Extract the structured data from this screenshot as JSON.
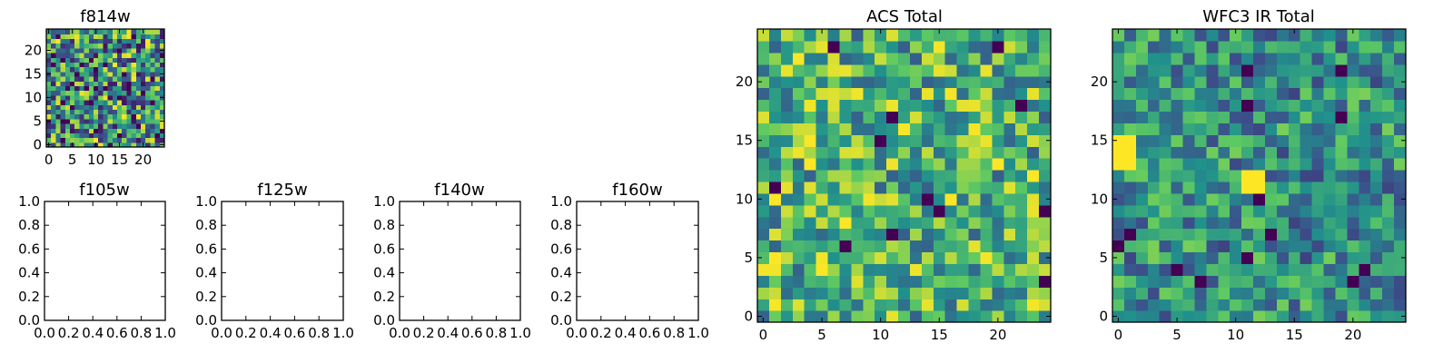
{
  "colormap": [
    "#440154",
    "#3b528b",
    "#21918c",
    "#5ec962",
    "#fde725"
  ],
  "chart_data": [
    {
      "type": "heatmap",
      "id": "f814w",
      "title": "f814w",
      "grid_size": 25,
      "xlim": [
        -0.5,
        24.5
      ],
      "ylim": [
        -0.5,
        24.5
      ],
      "xticks": [
        0,
        5,
        10,
        15,
        20
      ],
      "yticks": [
        0,
        5,
        10,
        15,
        20
      ],
      "seed": 814,
      "value_range": [
        0.05,
        1.0
      ],
      "dark_cell_rate": 0.04,
      "values": "pseudo-random noise field (not individually readable)"
    },
    {
      "type": "empty",
      "id": "f105w",
      "title": "f105w",
      "xlim": [
        0.0,
        1.0
      ],
      "ylim": [
        0.0,
        1.0
      ],
      "xticks": [
        "0.0",
        "0.2",
        "0.4",
        "0.6",
        "0.8",
        "1.0"
      ],
      "yticks": [
        "0.0",
        "0.2",
        "0.4",
        "0.6",
        "0.8",
        "1.0"
      ]
    },
    {
      "type": "empty",
      "id": "f125w",
      "title": "f125w",
      "xlim": [
        0.0,
        1.0
      ],
      "ylim": [
        0.0,
        1.0
      ],
      "xticks": [
        "0.0",
        "0.2",
        "0.4",
        "0.6",
        "0.8",
        "1.0"
      ],
      "yticks": [
        "0.0",
        "0.2",
        "0.4",
        "0.6",
        "0.8",
        "1.0"
      ]
    },
    {
      "type": "empty",
      "id": "f140w",
      "title": "f140w",
      "xlim": [
        0.0,
        1.0
      ],
      "ylim": [
        0.0,
        1.0
      ],
      "xticks": [
        "0.0",
        "0.2",
        "0.4",
        "0.6",
        "0.8",
        "1.0"
      ],
      "yticks": [
        "0.0",
        "0.2",
        "0.4",
        "0.6",
        "0.8",
        "1.0"
      ]
    },
    {
      "type": "empty",
      "id": "f160w",
      "title": "f160w",
      "xlim": [
        0.0,
        1.0
      ],
      "ylim": [
        0.0,
        1.0
      ],
      "xticks": [
        "0.0",
        "0.2",
        "0.4",
        "0.6",
        "0.8",
        "1.0"
      ],
      "yticks": [
        "0.0",
        "0.2",
        "0.4",
        "0.6",
        "0.8",
        "1.0"
      ]
    },
    {
      "type": "heatmap",
      "id": "acs-total",
      "title": "ACS Total",
      "grid_size": 25,
      "xlim": [
        -0.5,
        24.5
      ],
      "ylim": [
        -0.5,
        24.5
      ],
      "xticks": [
        0,
        5,
        10,
        15,
        20
      ],
      "yticks": [
        0,
        5,
        10,
        15,
        20
      ],
      "seed": 2024,
      "value_range": [
        0.3,
        1.0
      ],
      "dark_cell_rate": 0.03,
      "values": "pseudo-random noise field (not individually readable)"
    },
    {
      "type": "heatmap",
      "id": "wfc3-ir-total",
      "title": "WFC3 IR Total",
      "grid_size": 25,
      "xlim": [
        -0.5,
        24.5
      ],
      "ylim": [
        -0.5,
        24.5
      ],
      "xticks": [
        0,
        5,
        10,
        15,
        20
      ],
      "yticks": [
        0,
        5,
        10,
        15,
        20
      ],
      "seed": 3160,
      "value_range": [
        0.2,
        0.8
      ],
      "dark_cell_rate": 0.03,
      "bright_blocks": [
        {
          "x": [
            0,
            1
          ],
          "y": [
            13,
            15
          ]
        },
        {
          "x": [
            11,
            12
          ],
          "y": [
            11,
            12
          ]
        }
      ],
      "values": "pseudo-random noise field (not individually readable)"
    }
  ]
}
